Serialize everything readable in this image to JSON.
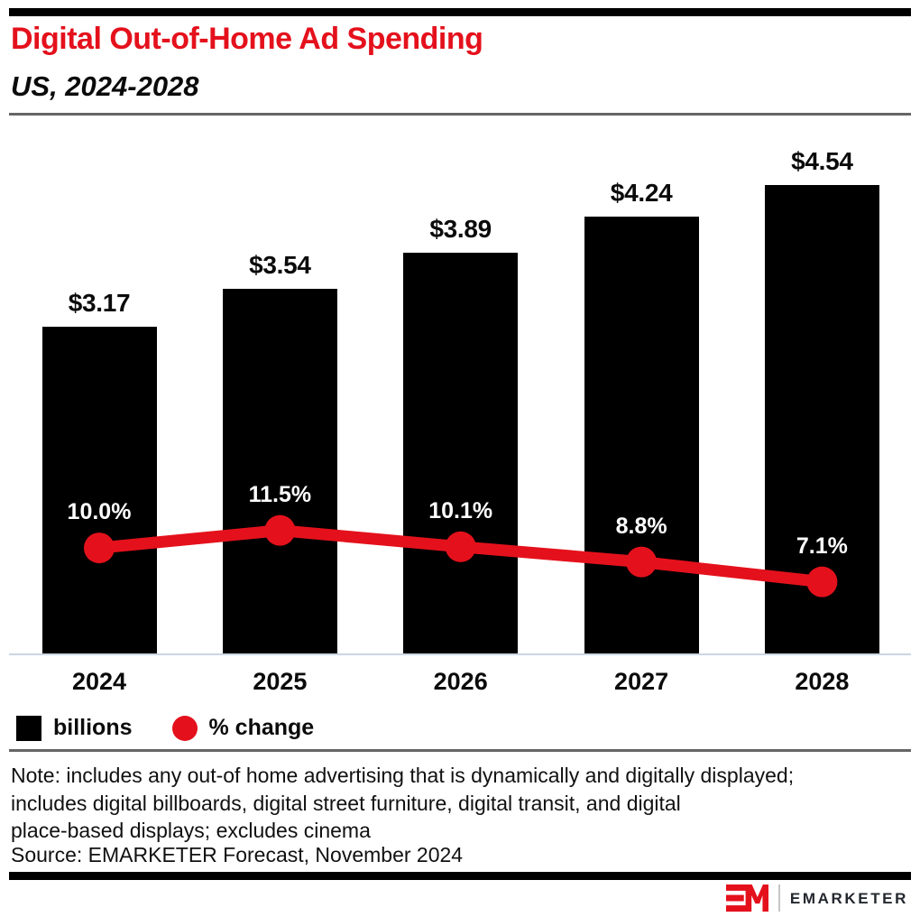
{
  "header": {
    "title": "Digital Out-of-Home Ad Spending",
    "subtitle": "US, 2024-2028"
  },
  "chart_data": {
    "type": "bar",
    "subtype": "bar-with-line-overlay",
    "title": "Digital Out-of-Home Ad Spending",
    "subtitle": "US, 2024-2028",
    "categories": [
      "2024",
      "2025",
      "2026",
      "2027",
      "2028"
    ],
    "series": [
      {
        "name": "billions",
        "type": "bar",
        "values": [
          3.17,
          3.54,
          3.89,
          4.24,
          4.54
        ],
        "labels": [
          "$3.17",
          "$3.54",
          "$3.89",
          "$4.24",
          "$4.54"
        ],
        "color": "#000000"
      },
      {
        "name": "% change",
        "type": "line",
        "values": [
          10.0,
          11.5,
          10.1,
          8.8,
          7.1
        ],
        "labels": [
          "10.0%",
          "11.5%",
          "10.1%",
          "8.8%",
          "7.1%"
        ],
        "color": "#E4111C"
      }
    ],
    "xlabel": "",
    "ylabel": "",
    "bar_axis_range": [
      0,
      5.2
    ],
    "line_axis_range": [
      0,
      12
    ],
    "grid": false,
    "legend_position": "bottom-left"
  },
  "legend": {
    "items": [
      {
        "label": "billions",
        "swatch": "square",
        "color": "#000000"
      },
      {
        "label": "% change",
        "swatch": "circle",
        "color": "#E4111C"
      }
    ]
  },
  "footer": {
    "note_lines": [
      "Note: includes any out-of home advertising that is dynamically and digitally displayed;",
      "includes digital billboards, digital street furniture, digital transit, and digital",
      "place-based displays; excludes cinema"
    ],
    "source": "Source: EMARKETER Forecast, November 2024",
    "brand_name": "EMARKETER",
    "logo_monogram": "EM"
  },
  "colors": {
    "accent_red": "#E4111C",
    "bar_black": "#000000",
    "divider_gray": "#666666",
    "axis_line": "#CBD6E2",
    "brand_text": "#23272E"
  }
}
